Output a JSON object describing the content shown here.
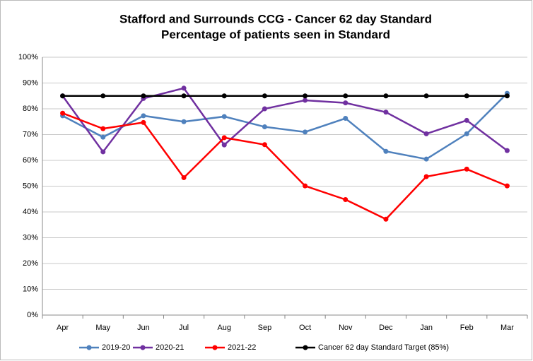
{
  "chart_data": {
    "type": "line",
    "title": "Stafford and Surrounds CCG - Cancer 62 day Standard",
    "subtitle": "Percentage of patients seen in Standard",
    "categories": [
      "Apr",
      "May",
      "Jun",
      "Jul",
      "Aug",
      "Sep",
      "Oct",
      "Nov",
      "Dec",
      "Jan",
      "Feb",
      "Mar"
    ],
    "series": [
      {
        "name": "2019-20",
        "color": "#4f81bd",
        "values": [
          77.3,
          69,
          77.3,
          75,
          77,
          73,
          71,
          76.3,
          63.5,
          60.5,
          70.3,
          86
        ]
      },
      {
        "name": "2020-21",
        "color": "#7030a0",
        "values": [
          85,
          63.3,
          84,
          88,
          66,
          80,
          83.3,
          82.3,
          78.7,
          70.3,
          75.5,
          63.8
        ]
      },
      {
        "name": "2021-22",
        "color": "#ff0000",
        "values": [
          78.3,
          72.3,
          74.7,
          53.3,
          68.8,
          66.1,
          50.1,
          44.8,
          37.2,
          53.7,
          56.6,
          50.1
        ]
      },
      {
        "name": "Cancer 62 day Standard Target (85%)",
        "color": "#000000",
        "values": [
          85,
          85,
          85,
          85,
          85,
          85,
          85,
          85,
          85,
          85,
          85,
          85
        ]
      }
    ],
    "ylim": [
      0,
      100
    ],
    "yticks": [
      {
        "value": 0,
        "label": "0%"
      },
      {
        "value": 10,
        "label": "10%"
      },
      {
        "value": 20,
        "label": "20%"
      },
      {
        "value": 30,
        "label": "30%"
      },
      {
        "value": 40,
        "label": "40%"
      },
      {
        "value": 50,
        "label": "50%"
      },
      {
        "value": 60,
        "label": "60%"
      },
      {
        "value": 70,
        "label": "70%"
      },
      {
        "value": 80,
        "label": "80%"
      },
      {
        "value": 90,
        "label": "90%"
      },
      {
        "value": 100,
        "label": "100%"
      }
    ],
    "grid": true,
    "legend": "bottom"
  }
}
